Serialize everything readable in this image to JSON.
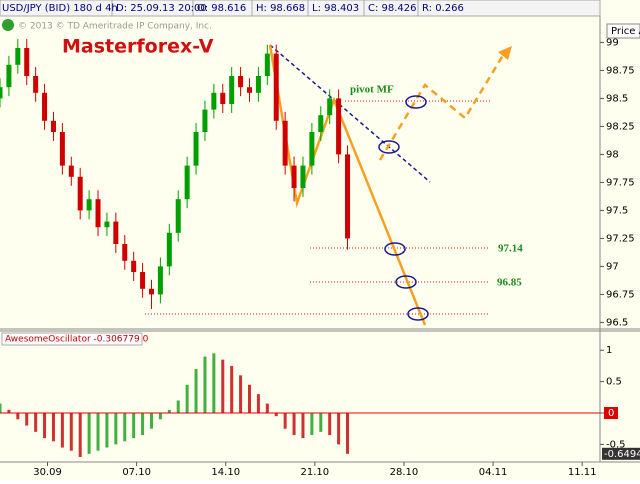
{
  "header": {
    "symbol": "USD/JPY (BID) 180 d 4h",
    "date": "D: 25.09.13 20:00",
    "open": "O: 98.616",
    "high": "H: 98.668",
    "low": "L: 98.403",
    "close": "C: 98.426",
    "range": "R: 0.266",
    "copyright": "© 2013 © TD Ameritrade IP Company, Inc.",
    "price_axis_label": "Price A"
  },
  "annotations": {
    "title": "Masterforex-V",
    "pivot": "pivot MF",
    "level1": "97.14",
    "level2": "96.85"
  },
  "chart_data": [
    {
      "type": "candlestick",
      "x": [
        0,
        3,
        6,
        9,
        12,
        15,
        18,
        21,
        24,
        27,
        30,
        33,
        36,
        39,
        42,
        45,
        48,
        51,
        54,
        57,
        60,
        63,
        66,
        69,
        72,
        75,
        78,
        81,
        84,
        87,
        90,
        93,
        96,
        99,
        102,
        105,
        108,
        111,
        114,
        117
      ],
      "open": [
        98.5,
        98.6,
        98.8,
        98.95,
        98.7,
        98.55,
        98.3,
        98.2,
        97.9,
        97.8,
        97.5,
        97.6,
        97.35,
        97.4,
        97.2,
        97.05,
        96.95,
        96.8,
        96.75,
        97.0,
        97.3,
        97.6,
        97.9,
        98.2,
        98.4,
        98.55,
        98.45,
        98.7,
        98.6,
        98.55,
        98.7,
        98.9,
        98.3,
        97.9,
        97.7,
        97.9,
        98.2,
        98.35,
        98.5,
        98.0
      ],
      "high": [
        98.68,
        98.88,
        99.03,
        99.03,
        98.78,
        98.63,
        98.38,
        98.28,
        97.98,
        97.88,
        97.68,
        97.68,
        97.48,
        97.48,
        97.28,
        97.13,
        97.03,
        96.88,
        97.08,
        97.38,
        97.68,
        97.98,
        98.28,
        98.48,
        98.63,
        98.63,
        98.78,
        98.78,
        98.68,
        98.78,
        98.98,
        98.98,
        98.38,
        97.98,
        97.98,
        98.28,
        98.43,
        98.58,
        98.58,
        98.08
      ],
      "low": [
        98.42,
        98.52,
        98.72,
        98.62,
        98.47,
        98.22,
        98.12,
        97.82,
        97.72,
        97.42,
        97.42,
        97.27,
        97.27,
        97.12,
        96.97,
        96.87,
        96.72,
        96.62,
        96.67,
        96.92,
        97.22,
        97.52,
        97.82,
        98.12,
        98.32,
        98.37,
        98.37,
        98.52,
        98.47,
        98.47,
        98.62,
        98.22,
        97.82,
        97.58,
        97.62,
        97.82,
        98.12,
        98.27,
        97.92,
        97.15
      ],
      "close": [
        98.6,
        98.8,
        98.95,
        98.7,
        98.55,
        98.3,
        98.2,
        97.9,
        97.8,
        97.5,
        97.6,
        97.35,
        97.4,
        97.2,
        97.05,
        96.95,
        96.8,
        96.75,
        97.0,
        97.3,
        97.6,
        97.9,
        98.2,
        98.4,
        98.55,
        98.45,
        98.7,
        98.6,
        98.55,
        98.7,
        98.9,
        98.3,
        97.9,
        97.7,
        97.9,
        98.2,
        98.35,
        98.5,
        98.0,
        97.25
      ],
      "up_color": "#00a000",
      "down_color": "#d00000",
      "xlim": [
        0,
        202
      ],
      "xticks": [
        {
          "value": 16,
          "label": "30.09"
        },
        {
          "value": 46,
          "label": "07.10"
        },
        {
          "value": 76,
          "label": "14.10"
        },
        {
          "value": 106,
          "label": "21.10"
        },
        {
          "value": 136,
          "label": "28.10"
        },
        {
          "value": 166,
          "label": "04.11"
        },
        {
          "value": 196,
          "label": "11.11"
        }
      ],
      "ylim": [
        96.45,
        99.2
      ],
      "yticks": [
        99,
        98.75,
        98.5,
        98.25,
        98,
        97.75,
        97.5,
        97.25,
        97,
        96.75,
        96.5
      ]
    },
    {
      "type": "histogram-oscillator",
      "title": "AwesomeOscillator -0.306779 0",
      "x": [
        0,
        3,
        6,
        9,
        12,
        15,
        18,
        21,
        24,
        27,
        30,
        33,
        36,
        39,
        42,
        45,
        48,
        51,
        54,
        57,
        60,
        63,
        66,
        69,
        72,
        75,
        78,
        81,
        84,
        87,
        90,
        93,
        96,
        99,
        102,
        105,
        108,
        111,
        114,
        117
      ],
      "values": [
        0.15,
        0.05,
        -0.1,
        -0.2,
        -0.3,
        -0.4,
        -0.45,
        -0.55,
        -0.6,
        -0.7,
        -0.65,
        -0.6,
        -0.55,
        -0.5,
        -0.45,
        -0.4,
        -0.35,
        -0.25,
        -0.1,
        0.05,
        0.2,
        0.45,
        0.7,
        0.9,
        0.95,
        0.85,
        0.75,
        0.6,
        0.45,
        0.3,
        0.15,
        -0.05,
        -0.25,
        -0.35,
        -0.4,
        -0.35,
        -0.3,
        -0.35,
        -0.5,
        -0.65
      ],
      "up_color": "#40b040",
      "down_color": "#d03030",
      "current_value": -0.6494,
      "xlim": [
        0,
        202
      ],
      "ylim": [
        -0.78,
        1.29
      ],
      "yticks": [
        1,
        0.5,
        0,
        -0.5
      ]
    }
  ]
}
